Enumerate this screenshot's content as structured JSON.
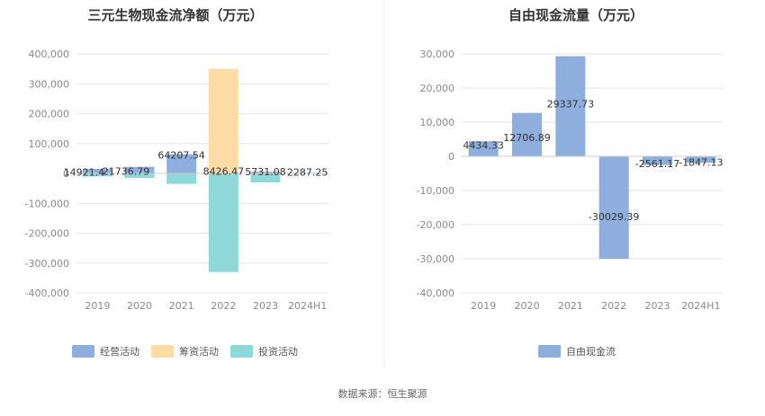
{
  "colors": {
    "operating": "#8eaede",
    "financing": "#ffdca6",
    "investing": "#8fd8d8",
    "fcf": "#8eaede",
    "grid": "#e6e6ea",
    "axis": "#cccccc"
  },
  "source_text": "数据来源：恒生聚源",
  "chart_data": [
    {
      "type": "bar",
      "title": "三元生物现金流净额（万元）",
      "categories": [
        "2019",
        "2020",
        "2021",
        "2022",
        "2023",
        "2024H1"
      ],
      "ylim": [
        -400000,
        400000
      ],
      "yticks": [
        400000,
        300000,
        200000,
        100000,
        0,
        -100000,
        -200000,
        -300000,
        -400000
      ],
      "ytick_labels": [
        "400,000",
        "300,000",
        "200,000",
        "100,000",
        "0",
        "-100,000",
        "-200,000",
        "-300,000",
        "-400,000"
      ],
      "grid": true,
      "legend_position": "bottom",
      "series": [
        {
          "name": "经营活动",
          "color_key": "operating",
          "values": [
            14921.4,
            21736.79,
            64207.54,
            8426.47,
            5731.08,
            2287.25
          ]
        },
        {
          "name": "筹资活动",
          "color_key": "financing",
          "values": [
            0,
            0,
            0,
            350000,
            0,
            0
          ]
        },
        {
          "name": "投资活动",
          "color_key": "investing",
          "values": [
            -10000,
            -15000,
            -35000,
            -330000,
            -30000,
            -1500
          ]
        }
      ],
      "data_labels": [
        {
          "category": "2019",
          "text": "14921.4"
        },
        {
          "category": "2020",
          "text": "21736.79"
        },
        {
          "category": "2021",
          "text": "64207.54"
        },
        {
          "category": "2022",
          "text": "8426.47"
        },
        {
          "category": "2023",
          "text": "5731.08"
        },
        {
          "category": "2024H1",
          "text": "2287.25"
        }
      ]
    },
    {
      "type": "bar",
      "title": "自由现金流量（万元）",
      "categories": [
        "2019",
        "2020",
        "2021",
        "2022",
        "2023",
        "2024H1"
      ],
      "ylim": [
        -40000,
        30000
      ],
      "yticks": [
        30000,
        20000,
        10000,
        0,
        -10000,
        -20000,
        -30000,
        -40000
      ],
      "ytick_labels": [
        "30,000",
        "20,000",
        "10,000",
        "0",
        "-10,000",
        "-20,000",
        "-30,000",
        "-40,000"
      ],
      "grid": true,
      "legend_position": "bottom",
      "series": [
        {
          "name": "自由现金流",
          "color_key": "fcf",
          "values": [
            4434.33,
            12706.89,
            29337.73,
            -30029.39,
            -2561.17,
            -1847.13
          ]
        }
      ],
      "data_labels": [
        {
          "category": "2019",
          "text": "4434.33"
        },
        {
          "category": "2020",
          "text": "12706.89"
        },
        {
          "category": "2021",
          "text": "29337.73"
        },
        {
          "category": "2022",
          "text": "-30029.39"
        },
        {
          "category": "2023",
          "text": "-2561.17"
        },
        {
          "category": "2024H1",
          "text": "-1847.13"
        }
      ]
    }
  ]
}
